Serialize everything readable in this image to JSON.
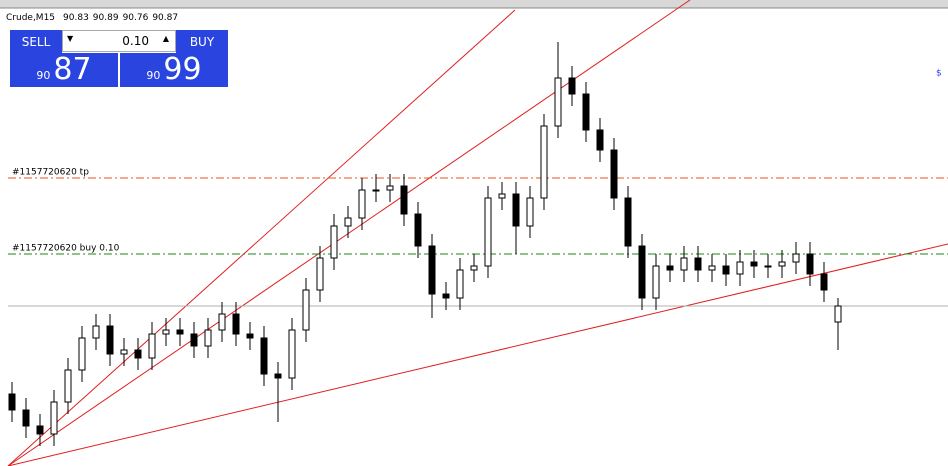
{
  "header": {
    "symbol": "Crude,M15",
    "ohlc": [
      "90.83",
      "90.89",
      "90.76",
      "90.87"
    ]
  },
  "trade_panel": {
    "sell": "SELL",
    "buy": "BUY",
    "lot": "0.10",
    "sell_price_big": "90",
    "sell_price_pips": "87",
    "buy_price_big": "90",
    "buy_price_pips": "99"
  },
  "orders": [
    {
      "label": "#1157720620 tp",
      "price": 91.19,
      "color": "#e8541c"
    },
    {
      "label": "#1157720620 buy 0.10",
      "price": 91.0,
      "color": "#1a8a1a"
    }
  ],
  "chart_data": {
    "type": "candlestick",
    "ylim": [
      90.47,
      91.61
    ],
    "bid": 90.87,
    "open": [
      90.65,
      90.61,
      90.57,
      90.55,
      90.63,
      90.71,
      90.79,
      90.82,
      90.75,
      90.76,
      90.74,
      90.8,
      90.81,
      90.8,
      90.77,
      90.81,
      90.85,
      90.8,
      90.79,
      90.7,
      90.69,
      90.81,
      90.91,
      90.99,
      91.07,
      91.09,
      91.16,
      91.16,
      91.17,
      91.1,
      91.02,
      90.9,
      90.89,
      90.96,
      90.97,
      91.14,
      91.15,
      91.07,
      91.14,
      91.32,
      91.44,
      91.4,
      91.31,
      91.26,
      91.14,
      91.02,
      90.89,
      90.97,
      90.96,
      90.99,
      90.96,
      90.97,
      90.95,
      90.98,
      90.97,
      90.97,
      90.98,
      91.0,
      90.95,
      90.83
    ],
    "high": [
      90.68,
      90.64,
      90.6,
      90.66,
      90.74,
      90.82,
      90.85,
      90.85,
      90.79,
      90.79,
      90.83,
      90.84,
      90.84,
      90.83,
      90.84,
      90.88,
      90.88,
      90.83,
      90.82,
      90.73,
      90.84,
      90.94,
      91.02,
      91.1,
      91.12,
      91.19,
      91.2,
      91.2,
      91.2,
      91.13,
      91.05,
      90.93,
      90.99,
      91.0,
      91.17,
      91.18,
      91.18,
      91.17,
      91.35,
      91.53,
      91.47,
      91.43,
      91.34,
      91.29,
      91.17,
      91.05,
      91.0,
      91.0,
      91.02,
      91.02,
      91.0,
      91.0,
      91.01,
      91.01,
      91.0,
      91.01,
      91.03,
      91.03,
      90.98,
      90.89
    ],
    "low": [
      90.58,
      90.54,
      90.52,
      90.52,
      90.6,
      90.68,
      90.76,
      90.72,
      90.72,
      90.71,
      90.71,
      90.77,
      90.77,
      90.74,
      90.74,
      90.78,
      90.77,
      90.76,
      90.67,
      90.58,
      90.66,
      90.78,
      90.88,
      90.96,
      91.04,
      91.06,
      91.13,
      91.13,
      91.07,
      90.99,
      90.84,
      90.86,
      90.86,
      90.93,
      90.94,
      91.11,
      91.0,
      91.04,
      91.11,
      91.29,
      91.37,
      91.28,
      91.23,
      91.11,
      90.99,
      90.86,
      90.86,
      90.93,
      90.93,
      90.93,
      90.93,
      90.92,
      90.92,
      90.94,
      90.94,
      90.94,
      90.95,
      90.92,
      90.88,
      90.76
    ],
    "close": [
      90.61,
      90.57,
      90.55,
      90.63,
      90.71,
      90.79,
      90.82,
      90.75,
      90.76,
      90.74,
      90.8,
      90.81,
      90.8,
      90.77,
      90.81,
      90.85,
      90.8,
      90.79,
      90.7,
      90.69,
      90.81,
      90.91,
      90.99,
      91.07,
      91.09,
      91.16,
      91.16,
      91.17,
      91.1,
      91.02,
      90.9,
      90.89,
      90.96,
      90.97,
      91.14,
      91.15,
      91.07,
      91.14,
      91.32,
      91.44,
      91.4,
      91.31,
      91.26,
      91.14,
      91.02,
      90.89,
      90.97,
      90.96,
      90.99,
      90.96,
      90.97,
      90.95,
      90.98,
      90.97,
      90.97,
      90.98,
      91.0,
      90.95,
      90.91,
      90.87
    ]
  }
}
